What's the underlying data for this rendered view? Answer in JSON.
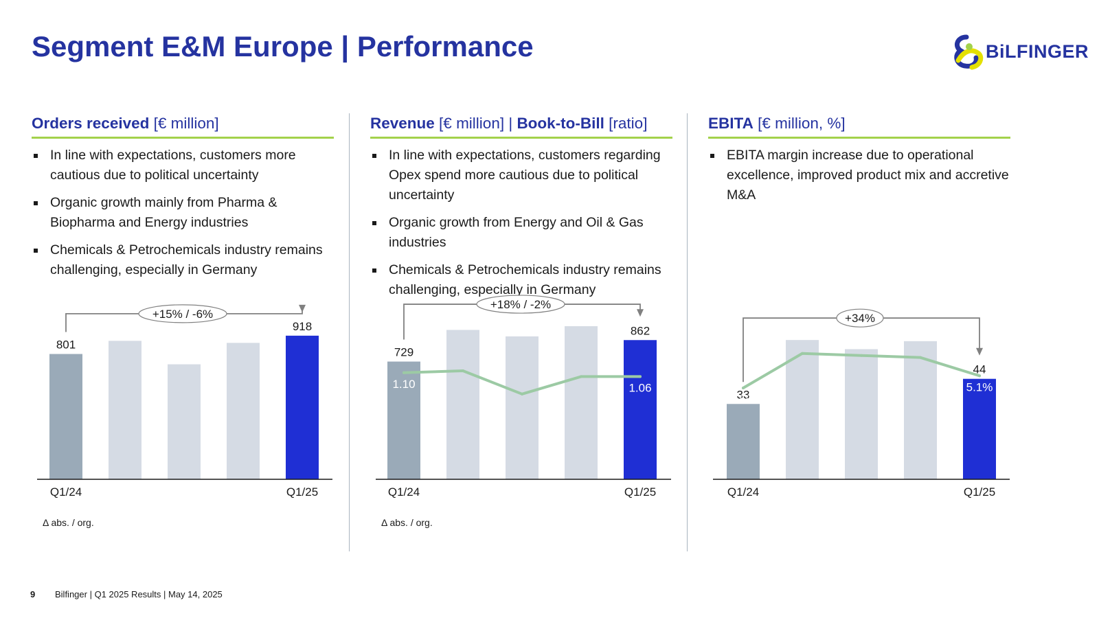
{
  "title": "Segment E&M Europe | Performance",
  "logo": {
    "text": "BiLFINGER",
    "brand_blue": "#2533a0",
    "brand_yellow": "#e4e000",
    "brand_green": "#a3d24b"
  },
  "panels": [
    {
      "heading_bold": "Orders received",
      "heading_unit": " [€ million]",
      "bullets": [
        "In line with expectations, customers more cautious due to political uncertainty",
        "Organic growth mainly from Pharma & Biopharma and Energy industries",
        "Chemicals & Petrochemicals industry remains challenging, especially in Germany"
      ],
      "footnote": "Δ abs. / org."
    },
    {
      "heading_bold": "Revenue",
      "heading_unit": " [€ million] | ",
      "heading_bold2": "Book-to-Bill",
      "heading_unit2": " [ratio]",
      "bullets": [
        "In line with expectations, customers regarding Opex spend more cautious due to political uncertainty",
        "Organic growth from Energy and Oil & Gas industries",
        "Chemicals & Petrochemicals industry remains challenging, especially in Germany"
      ],
      "footnote": "Δ abs. / org."
    },
    {
      "heading_bold": "EBITA",
      "heading_unit": " [€ million, %]",
      "bullets": [
        "EBITA margin increase due to operational excellence, improved product mix and accretive M&A"
      ]
    }
  ],
  "chart_data": [
    {
      "type": "bar",
      "categories": [
        "Q1/24",
        "",
        "",
        "",
        "Q1/25"
      ],
      "values": [
        801,
        885,
        735,
        872,
        918
      ],
      "value_labels": [
        "801",
        "",
        "",
        "",
        "918"
      ],
      "ylim": [
        0,
        1150
      ],
      "bar_colors": [
        "#9aaab8",
        "#d5dbe4",
        "#d5dbe4",
        "#d5dbe4",
        "#1f2fd4"
      ],
      "annotation": "+15% / -6%"
    },
    {
      "type": "bar",
      "categories": [
        "Q1/24",
        "",
        "",
        "",
        "Q1/25"
      ],
      "values": [
        729,
        925,
        885,
        948,
        862
      ],
      "value_labels": [
        "729",
        "",
        "",
        "",
        "862"
      ],
      "ylim": [
        0,
        1080
      ],
      "bar_colors": [
        "#9aaab8",
        "#d5dbe4",
        "#d5dbe4",
        "#d5dbe4",
        "#1f2fd4"
      ],
      "annotation": "+18% / -2%",
      "line": {
        "values": [
          1.1,
          1.12,
          0.88,
          1.06,
          1.06
        ],
        "labels": [
          "1.10",
          "",
          "",
          "",
          "1.06"
        ],
        "ylim": [
          0,
          1.8
        ],
        "color": "#9ccaa4"
      }
    },
    {
      "type": "bar",
      "categories": [
        "Q1/24",
        "",
        "",
        "",
        "Q1/25"
      ],
      "values": [
        33,
        61,
        57,
        60.5,
        44
      ],
      "value_labels": [
        "33",
        "",
        "",
        "",
        "44"
      ],
      "ylim": [
        0,
        80
      ],
      "bar_colors": [
        "#9aaab8",
        "#d5dbe4",
        "#d5dbe4",
        "#d5dbe4",
        "#1f2fd4"
      ],
      "annotation": "+34%",
      "line": {
        "values": [
          4.5,
          6.2,
          6.1,
          6.0,
          5.1
        ],
        "labels": [
          "4.5%",
          "",
          "",
          "",
          "5.1%"
        ],
        "ylim": [
          0,
          9.0
        ],
        "color": "#9ccaa4"
      }
    }
  ],
  "footer": {
    "page": "9",
    "text": "Bilfinger | Q1 2025 Results | May 14, 2025"
  }
}
